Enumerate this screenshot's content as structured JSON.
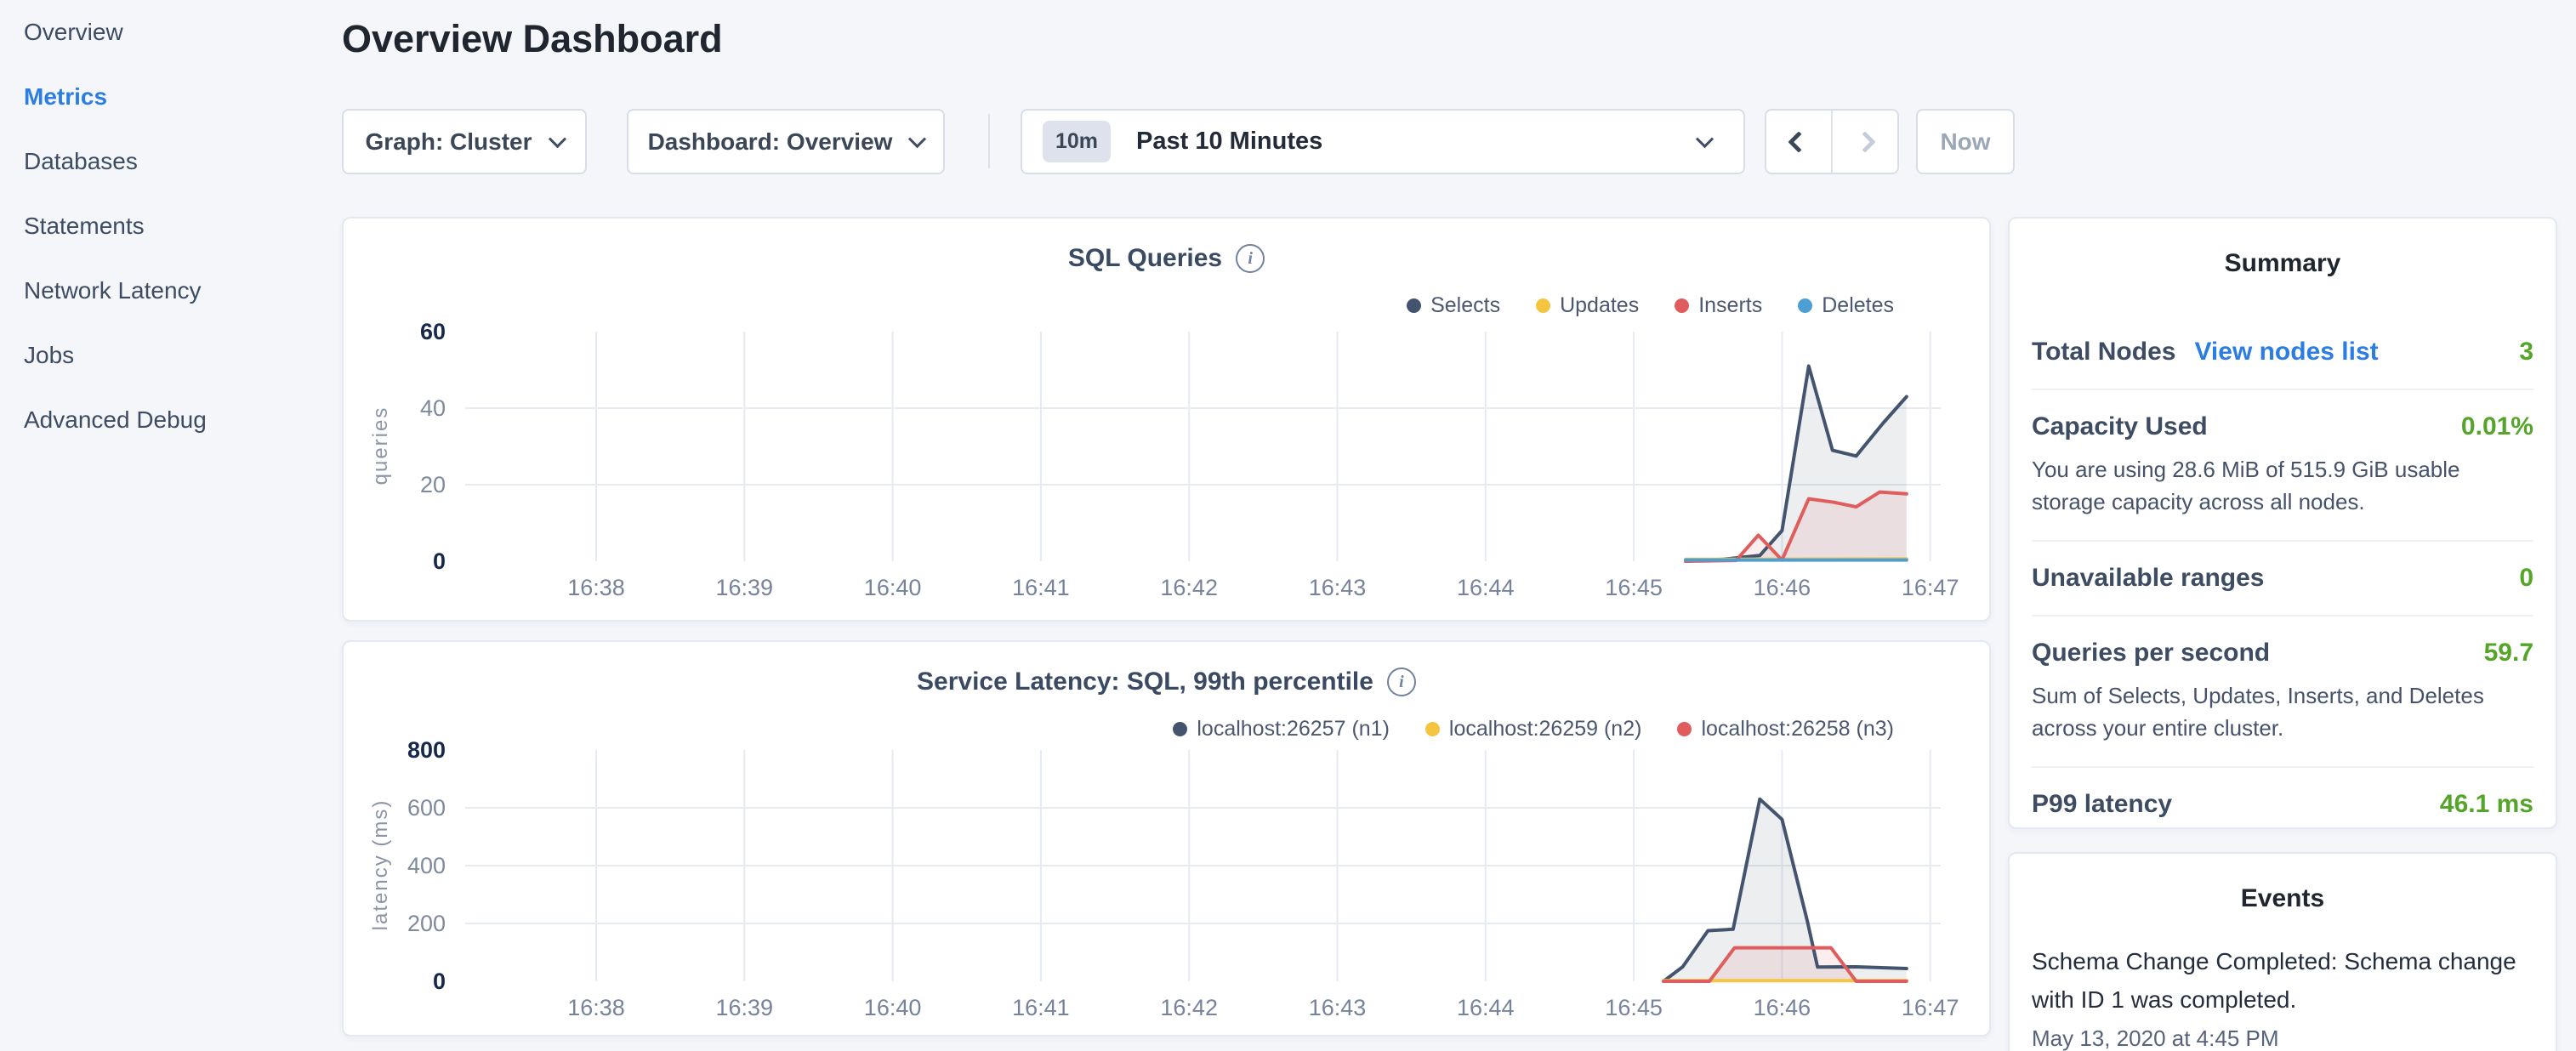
{
  "colors": {
    "accent_blue": "#2b7de3",
    "value_green": "#54a529",
    "selects_navy": "#44546f",
    "updates_yellow": "#f5c542",
    "inserts_red": "#e05d5d",
    "deletes_blue": "#4c9fd4",
    "page_background": "#f4f6fa"
  },
  "sidebar": {
    "items": [
      {
        "label": "Overview",
        "active": false
      },
      {
        "label": "Metrics",
        "active": true
      },
      {
        "label": "Databases",
        "active": false
      },
      {
        "label": "Statements",
        "active": false
      },
      {
        "label": "Network Latency",
        "active": false
      },
      {
        "label": "Jobs",
        "active": false
      },
      {
        "label": "Advanced Debug",
        "active": false
      }
    ]
  },
  "header": {
    "title": "Overview Dashboard"
  },
  "toolbar": {
    "graph_label": "Graph: Cluster",
    "dashboard_label": "Dashboard: Overview",
    "time_range_badge": "10m",
    "time_range_label": "Past 10 Minutes",
    "now_label": "Now"
  },
  "chart_data": [
    {
      "type": "line",
      "title": "SQL Queries",
      "ylabel": "queries",
      "ylim": [
        0,
        60
      ],
      "yticks": [
        0,
        20,
        40,
        60
      ],
      "xticks": [
        "16:38",
        "16:39",
        "16:40",
        "16:41",
        "16:42",
        "16:43",
        "16:44",
        "16:45",
        "16:46",
        "16:47"
      ],
      "x_unit": "minutes after 16:38",
      "grid": true,
      "legend_position": "top-right",
      "series": [
        {
          "name": "Selects",
          "color": "#44546f",
          "points": [
            [
              7.35,
              0
            ],
            [
              7.6,
              0.5
            ],
            [
              7.85,
              1.5
            ],
            [
              8.0,
              8
            ],
            [
              8.18,
              51
            ],
            [
              8.34,
              29
            ],
            [
              8.5,
              27.5
            ],
            [
              8.68,
              36
            ],
            [
              8.84,
              43
            ]
          ]
        },
        {
          "name": "Updates",
          "color": "#f5c542",
          "points": [
            [
              7.35,
              0.5
            ],
            [
              8.84,
              0.6
            ]
          ]
        },
        {
          "name": "Inserts",
          "color": "#e05d5d",
          "points": [
            [
              7.35,
              0
            ],
            [
              7.69,
              0.2
            ],
            [
              7.84,
              6.8
            ],
            [
              8.0,
              0.3
            ],
            [
              8.18,
              16.3
            ],
            [
              8.35,
              15.4
            ],
            [
              8.5,
              14.2
            ],
            [
              8.66,
              18.1
            ],
            [
              8.84,
              17.6
            ]
          ]
        },
        {
          "name": "Deletes",
          "color": "#4c9fd4",
          "points": [
            [
              7.35,
              0.3
            ],
            [
              8.84,
              0.3
            ]
          ]
        }
      ]
    },
    {
      "type": "line",
      "title": "Service Latency: SQL, 99th percentile",
      "ylabel": "latency (ms)",
      "ylim": [
        0,
        800
      ],
      "yticks": [
        0,
        200,
        400,
        600,
        800
      ],
      "xticks": [
        "16:38",
        "16:39",
        "16:40",
        "16:41",
        "16:42",
        "16:43",
        "16:44",
        "16:45",
        "16:46",
        "16:47"
      ],
      "x_unit": "minutes after 16:38",
      "grid": true,
      "legend_position": "top-right",
      "series": [
        {
          "name": "localhost:26257 (n1)",
          "color": "#44546f",
          "points": [
            [
              7.2,
              0
            ],
            [
              7.33,
              50
            ],
            [
              7.5,
              175
            ],
            [
              7.67,
              180
            ],
            [
              7.85,
              630
            ],
            [
              8.0,
              560
            ],
            [
              8.17,
              210
            ],
            [
              8.24,
              49
            ],
            [
              8.5,
              50
            ],
            [
              8.84,
              44
            ]
          ]
        },
        {
          "name": "localhost:26259 (n2)",
          "color": "#f5c542",
          "points": [
            [
              7.2,
              2
            ],
            [
              8.84,
              2
            ]
          ]
        },
        {
          "name": "localhost:26258 (n3)",
          "color": "#e05d5d",
          "points": [
            [
              7.2,
              0
            ],
            [
              7.51,
              0
            ],
            [
              7.68,
              116
            ],
            [
              8.33,
              116
            ],
            [
              8.5,
              0
            ],
            [
              8.84,
              0
            ]
          ]
        }
      ]
    }
  ],
  "summary": {
    "title": "Summary",
    "rows": [
      {
        "label": "Total Nodes",
        "link": "View nodes list",
        "value": "3"
      },
      {
        "label": "Capacity Used",
        "value": "0.01%",
        "description": "You are using 28.6 MiB of 515.9 GiB usable storage capacity across all nodes."
      },
      {
        "label": "Unavailable ranges",
        "value": "0"
      },
      {
        "label": "Queries per second",
        "value": "59.7",
        "description": "Sum of Selects, Updates, Inserts, and Deletes across your entire cluster."
      },
      {
        "label": "P99 latency",
        "value": "46.1 ms"
      }
    ]
  },
  "events": {
    "title": "Events",
    "items": [
      {
        "text": "Schema Change Completed: Schema change with ID 1 was completed.",
        "timestamp": "May 13, 2020 at 4:45 PM"
      }
    ]
  }
}
